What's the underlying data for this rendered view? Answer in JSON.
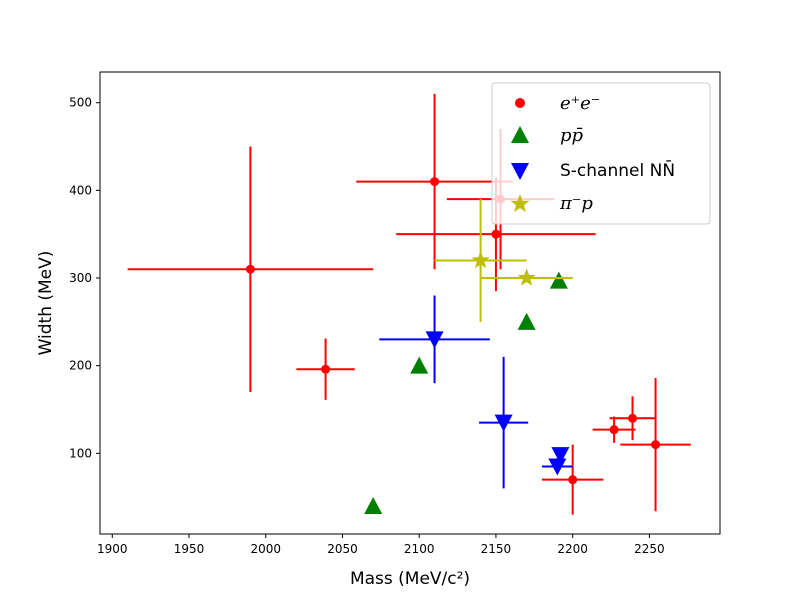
{
  "chart_data": {
    "type": "scatter",
    "xlabel": "Mass (MeV/c²)",
    "ylabel": "Width (MeV)",
    "xlim": [
      1892,
      2296
    ],
    "ylim": [
      8,
      535
    ],
    "x_ticks": [
      "1900",
      "1950",
      "2000",
      "2050",
      "2100",
      "2150",
      "2200",
      "2250"
    ],
    "y_ticks": [
      "100",
      "200",
      "300",
      "400",
      "500"
    ],
    "x_tick_values": [
      1900,
      1950,
      2000,
      2050,
      2100,
      2150,
      2200,
      2250
    ],
    "y_tick_values": [
      100,
      200,
      300,
      400,
      500
    ],
    "grid": false,
    "legend_position": "top-right",
    "series": [
      {
        "name": "e⁺e⁻",
        "marker": "circle",
        "color": "#ff0000",
        "points": [
          {
            "x": 1990,
            "y": 310,
            "xerr": [
              80,
              80
            ],
            "yerr": [
              140,
              140
            ]
          },
          {
            "x": 2039,
            "y": 196,
            "xerr": [
              19,
              19
            ],
            "yerr": [
              35,
              35
            ]
          },
          {
            "x": 2110,
            "y": 410,
            "xerr": [
              51,
              51
            ],
            "yerr": [
              100,
              100
            ]
          },
          {
            "x": 2153,
            "y": 390,
            "xerr": [
              35,
              35
            ],
            "yerr": [
              80,
              80
            ]
          },
          {
            "x": 2150,
            "y": 350,
            "xerr": [
              65,
              65
            ],
            "yerr": [
              65,
              65
            ]
          },
          {
            "x": 2200,
            "y": 70,
            "xerr": [
              20,
              20
            ],
            "yerr": [
              40,
              40
            ]
          },
          {
            "x": 2227,
            "y": 127,
            "xerr": [
              14,
              14
            ],
            "yerr": [
              15,
              15
            ]
          },
          {
            "x": 2239,
            "y": 140,
            "xerr": [
              15,
              15
            ],
            "yerr": [
              25,
              25
            ]
          },
          {
            "x": 2254,
            "y": 110,
            "xerr": [
              23,
              23
            ],
            "yerr": [
              76,
              76
            ]
          }
        ]
      },
      {
        "name": "pp̄",
        "marker": "triangle-up",
        "color": "#008000",
        "points": [
          {
            "x": 2070,
            "y": 40
          },
          {
            "x": 2100,
            "y": 200
          },
          {
            "x": 2170,
            "y": 250
          },
          {
            "x": 2191,
            "y": 297
          }
        ]
      },
      {
        "name": "S-channel NN̄",
        "marker": "triangle-down",
        "color": "#0000ff",
        "points": [
          {
            "x": 2110,
            "y": 230,
            "xerr": [
              36,
              36
            ],
            "yerr": [
              50,
              50
            ]
          },
          {
            "x": 2155,
            "y": 135,
            "xerr": [
              16,
              16
            ],
            "yerr": [
              75,
              75
            ]
          },
          {
            "x": 2190,
            "y": 85,
            "xerr": [
              10,
              10
            ],
            "yerr": [
              0,
              0
            ]
          },
          {
            "x": 2192,
            "y": 98,
            "xerr": [
              0,
              0
            ],
            "yerr": [
              0,
              0
            ]
          }
        ]
      },
      {
        "name": "π⁻p",
        "marker": "star",
        "color": "#bfbf00",
        "points": [
          {
            "x": 2140,
            "y": 320,
            "xerr": [
              30,
              30
            ],
            "yerr": [
              70,
              70
            ]
          },
          {
            "x": 2170,
            "y": 300,
            "xerr": [
              30,
              30
            ],
            "yerr": [
              0,
              0
            ]
          }
        ]
      }
    ]
  }
}
